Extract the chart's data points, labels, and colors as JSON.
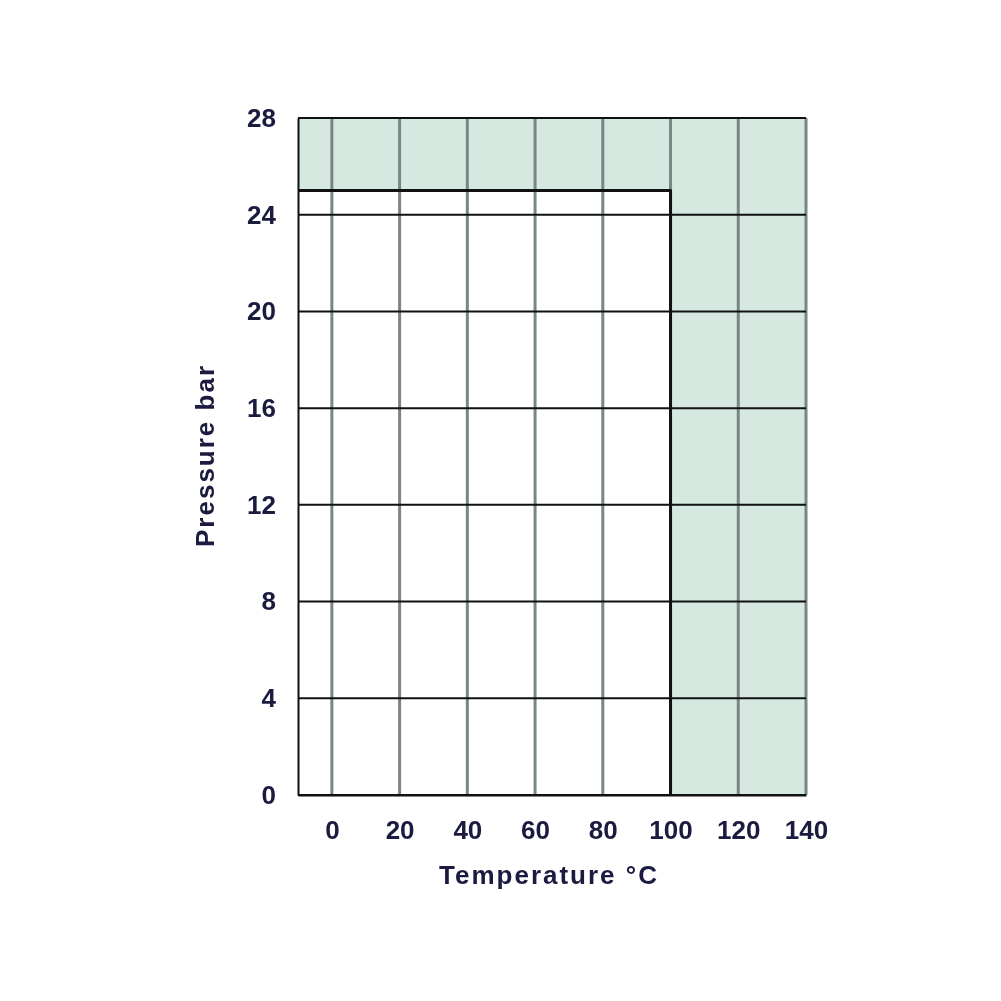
{
  "chart_data": {
    "type": "step",
    "xlabel": "Temperature °C",
    "ylabel": "Pressure bar",
    "xlim": [
      -10,
      140
    ],
    "xticks": [
      0,
      20,
      40,
      60,
      80,
      100,
      120,
      140
    ],
    "ylim": [
      0,
      28
    ],
    "yticks": [
      0,
      4,
      8,
      12,
      16,
      20,
      24,
      28
    ],
    "grid": true,
    "marker": "none",
    "line_style": "solid",
    "bands": [
      {
        "axis": "x",
        "from": 100,
        "to": 140,
        "color": "#d6e9e1"
      },
      {
        "axis": "y",
        "from": 25,
        "to": 28,
        "color": "#d6e9e1"
      }
    ],
    "series": [
      {
        "color": "#111111",
        "x": [
          -10,
          100
        ],
        "values": [
          25,
          0
        ]
      }
    ]
  }
}
